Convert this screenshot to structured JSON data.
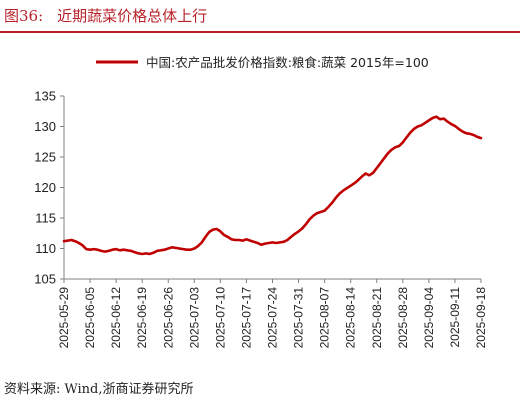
{
  "figure": {
    "label": "图36:",
    "title": "近期蔬菜价格总体上行"
  },
  "source": {
    "prefix": "资料来源:",
    "text": "Wind,浙商证券研究所"
  },
  "colors": {
    "accent": "#b8232b",
    "line": "#c00000",
    "axis": "#808080",
    "text": "#222222"
  },
  "chart_data": {
    "type": "line",
    "title": "",
    "xlabel": "",
    "ylabel": "",
    "ylim": [
      105,
      135
    ],
    "yticks": [
      105,
      110,
      115,
      120,
      125,
      130,
      135
    ],
    "xticks": [
      "2025-05-29",
      "2025-06-05",
      "2025-06-12",
      "2025-06-19",
      "2025-06-26",
      "2025-07-03",
      "2025-07-10",
      "2025-07-17",
      "2025-07-24",
      "2025-07-31",
      "2025-08-07",
      "2025-08-14",
      "2025-08-21",
      "2025-08-28",
      "2025-09-04",
      "2025-09-11",
      "2025-09-18"
    ],
    "grid": false,
    "legend": "top-center",
    "series": [
      {
        "name": "中国:农产品批发价格指数:粮食:蔬菜 2015年=100",
        "color": "#c00000",
        "x": [
          "2025-05-29",
          "2025-05-30",
          "2025-05-31",
          "2025-06-01",
          "2025-06-02",
          "2025-06-03",
          "2025-06-04",
          "2025-06-05",
          "2025-06-06",
          "2025-06-07",
          "2025-06-08",
          "2025-06-09",
          "2025-06-10",
          "2025-06-11",
          "2025-06-12",
          "2025-06-13",
          "2025-06-14",
          "2025-06-15",
          "2025-06-16",
          "2025-06-17",
          "2025-06-18",
          "2025-06-19",
          "2025-06-20",
          "2025-06-21",
          "2025-06-22",
          "2025-06-23",
          "2025-06-24",
          "2025-06-25",
          "2025-06-26",
          "2025-06-27",
          "2025-06-28",
          "2025-06-29",
          "2025-06-30",
          "2025-07-01",
          "2025-07-02",
          "2025-07-03",
          "2025-07-04",
          "2025-07-05",
          "2025-07-06",
          "2025-07-07",
          "2025-07-08",
          "2025-07-09",
          "2025-07-10",
          "2025-07-11",
          "2025-07-12",
          "2025-07-13",
          "2025-07-14",
          "2025-07-15",
          "2025-07-16",
          "2025-07-17",
          "2025-07-18",
          "2025-07-19",
          "2025-07-20",
          "2025-07-21",
          "2025-07-22",
          "2025-07-23",
          "2025-07-24",
          "2025-07-25",
          "2025-07-26",
          "2025-07-27",
          "2025-07-28",
          "2025-07-29",
          "2025-07-30",
          "2025-07-31",
          "2025-08-01",
          "2025-08-02",
          "2025-08-03",
          "2025-08-04",
          "2025-08-05",
          "2025-08-06",
          "2025-08-07",
          "2025-08-08",
          "2025-08-09",
          "2025-08-10",
          "2025-08-11",
          "2025-08-12",
          "2025-08-13",
          "2025-08-14",
          "2025-08-15",
          "2025-08-16",
          "2025-08-17",
          "2025-08-18",
          "2025-08-19",
          "2025-08-20",
          "2025-08-21",
          "2025-08-22",
          "2025-08-23",
          "2025-08-24",
          "2025-08-25",
          "2025-08-26",
          "2025-08-27",
          "2025-08-28",
          "2025-08-29",
          "2025-08-30",
          "2025-08-31",
          "2025-09-01",
          "2025-09-02",
          "2025-09-03",
          "2025-09-04",
          "2025-09-05",
          "2025-09-06",
          "2025-09-07",
          "2025-09-08",
          "2025-09-09",
          "2025-09-10",
          "2025-09-11",
          "2025-09-12",
          "2025-09-13",
          "2025-09-14",
          "2025-09-15",
          "2025-09-16",
          "2025-09-17",
          "2025-09-18"
        ],
        "y": [
          111.2,
          111.3,
          111.4,
          111.2,
          110.9,
          110.5,
          109.9,
          109.8,
          109.9,
          109.8,
          109.6,
          109.5,
          109.6,
          109.8,
          109.9,
          109.7,
          109.8,
          109.7,
          109.6,
          109.4,
          109.2,
          109.1,
          109.2,
          109.1,
          109.3,
          109.6,
          109.7,
          109.8,
          110.0,
          110.2,
          110.1,
          110.0,
          109.9,
          109.8,
          109.8,
          110.0,
          110.4,
          111.0,
          111.9,
          112.7,
          113.1,
          113.2,
          112.8,
          112.2,
          111.9,
          111.5,
          111.4,
          111.4,
          111.3,
          111.5,
          111.3,
          111.1,
          110.9,
          110.6,
          110.8,
          110.9,
          111.0,
          110.9,
          111.0,
          111.1,
          111.4,
          111.9,
          112.4,
          112.8,
          113.3,
          114.0,
          114.8,
          115.4,
          115.8,
          116.0,
          116.2,
          116.8,
          117.5,
          118.3,
          119.0,
          119.5,
          119.9,
          120.3,
          120.7,
          121.2,
          121.8,
          122.3,
          122.0,
          122.4,
          123.2,
          124.0,
          124.8,
          125.6,
          126.2,
          126.6,
          126.8,
          127.4,
          128.2,
          129.0,
          129.6,
          130.0,
          130.2,
          130.6,
          131.0,
          131.4,
          131.6,
          131.2,
          131.3,
          130.8,
          130.4,
          130.1,
          129.6,
          129.2,
          128.9,
          128.8,
          128.6,
          128.3,
          128.1
        ]
      }
    ]
  }
}
